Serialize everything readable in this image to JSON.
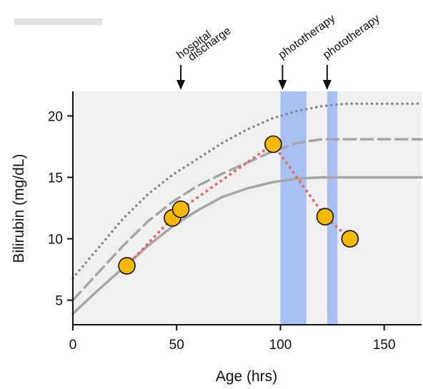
{
  "chart_data": {
    "type": "line",
    "xlabel": "Age (hrs)",
    "ylabel": "Bilirubin (mg/dL)",
    "xlim": [
      0,
      168
    ],
    "ylim": [
      3,
      22
    ],
    "xticks": [
      0,
      50,
      100,
      150
    ],
    "yticks": [
      5,
      10,
      15,
      20
    ],
    "background": "#f0f0f0",
    "threshold_lines": [
      {
        "style": "dotted",
        "color": "#888888",
        "x": [
          0,
          12,
          24,
          36,
          48,
          60,
          72,
          84,
          96,
          108,
          120,
          132,
          144,
          168
        ],
        "y": [
          6.8,
          9.2,
          11.6,
          13.6,
          15.2,
          16.5,
          17.8,
          18.9,
          19.8,
          20.4,
          20.8,
          21.0,
          21.0,
          21.0
        ]
      },
      {
        "style": "dashed",
        "color": "#a6a6a6",
        "x": [
          0,
          12,
          24,
          36,
          48,
          60,
          72,
          84,
          96,
          108,
          120,
          132,
          144,
          168
        ],
        "y": [
          5.0,
          7.2,
          9.4,
          11.4,
          13.0,
          14.3,
          15.3,
          16.2,
          17.1,
          17.8,
          18.1,
          18.1,
          18.1,
          18.1
        ]
      },
      {
        "style": "solid",
        "color": "#a6a6a6",
        "x": [
          0,
          12,
          24,
          36,
          48,
          60,
          72,
          84,
          96,
          108,
          120,
          132,
          144,
          168
        ],
        "y": [
          3.9,
          5.8,
          7.6,
          9.4,
          11.0,
          12.3,
          13.4,
          14.1,
          14.6,
          14.9,
          15.0,
          15.0,
          15.0,
          15.0
        ]
      }
    ],
    "measurements": {
      "color": "#f5b800",
      "trend_color": "#e86a6a",
      "x": [
        26,
        48,
        52,
        96.5,
        121.5,
        133.5
      ],
      "y": [
        7.8,
        11.7,
        12.4,
        17.7,
        11.8,
        10.0
      ]
    },
    "shaded_intervals": [
      {
        "x0": 100,
        "x1": 112.5,
        "color": "#a9c1f2"
      },
      {
        "x0": 122.5,
        "x1": 127.5,
        "color": "#a9c1f2"
      }
    ],
    "annotations": [
      {
        "x": 52,
        "lines": [
          "hospital",
          "discharge"
        ]
      },
      {
        "x": 101,
        "lines": [
          "phototherapy"
        ]
      },
      {
        "x": 122.5,
        "lines": [
          "phototherapy"
        ]
      }
    ]
  }
}
